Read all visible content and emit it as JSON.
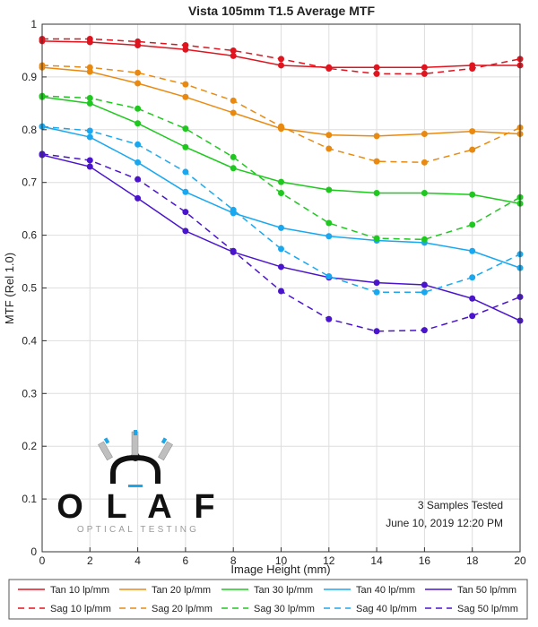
{
  "chart_data": {
    "type": "line",
    "title": "Vista 105mm T1.5 Average MTF",
    "xlabel": "Image Height (mm)",
    "ylabel": "MTF (Rel 1.0)",
    "xlim": [
      0,
      20
    ],
    "ylim": [
      0,
      1
    ],
    "xticks": [
      "0",
      "2",
      "4",
      "6",
      "8",
      "10",
      "12",
      "14",
      "16",
      "18",
      "20"
    ],
    "yticks": [
      "0",
      "0.1",
      "0.2",
      "0.3",
      "0.4",
      "0.5",
      "0.6",
      "0.7",
      "0.8",
      "0.9",
      "1"
    ],
    "grid": true,
    "legend_position": "bottom",
    "x": [
      0,
      2,
      4,
      6,
      8,
      10,
      12,
      14,
      16,
      18,
      20
    ],
    "series": [
      {
        "name": "Tan 10 lp/mm",
        "color": "#e0141e",
        "dash": false,
        "values": [
          0.968,
          0.966,
          0.96,
          0.952,
          0.94,
          0.922,
          0.918,
          0.918,
          0.918,
          0.922,
          0.922
        ]
      },
      {
        "name": "Tan 20 lp/mm",
        "color": "#e88a12",
        "dash": false,
        "values": [
          0.918,
          0.91,
          0.888,
          0.862,
          0.832,
          0.802,
          0.79,
          0.788,
          0.792,
          0.797,
          0.792
        ]
      },
      {
        "name": "Tan 30 lp/mm",
        "color": "#1ec81e",
        "dash": false,
        "values": [
          0.862,
          0.85,
          0.812,
          0.767,
          0.727,
          0.701,
          0.686,
          0.68,
          0.68,
          0.677,
          0.66
        ]
      },
      {
        "name": "Tan 40 lp/mm",
        "color": "#19a8f0",
        "dash": false,
        "values": [
          0.806,
          0.786,
          0.738,
          0.682,
          0.642,
          0.614,
          0.598,
          0.59,
          0.586,
          0.57,
          0.538
        ]
      },
      {
        "name": "Tan 50 lp/mm",
        "color": "#4a14cc",
        "dash": false,
        "values": [
          0.752,
          0.73,
          0.67,
          0.608,
          0.568,
          0.54,
          0.52,
          0.51,
          0.506,
          0.48,
          0.438
        ]
      },
      {
        "name": "Sag 10 lp/mm",
        "color": "#e0141e",
        "dash": true,
        "values": [
          0.972,
          0.972,
          0.967,
          0.96,
          0.95,
          0.934,
          0.916,
          0.906,
          0.906,
          0.916,
          0.934
        ]
      },
      {
        "name": "Sag 20 lp/mm",
        "color": "#e88a12",
        "dash": true,
        "values": [
          0.922,
          0.918,
          0.908,
          0.886,
          0.855,
          0.806,
          0.764,
          0.74,
          0.738,
          0.762,
          0.804
        ]
      },
      {
        "name": "Sag 30 lp/mm",
        "color": "#1ec81e",
        "dash": true,
        "values": [
          0.864,
          0.86,
          0.84,
          0.802,
          0.748,
          0.68,
          0.623,
          0.594,
          0.592,
          0.62,
          0.672
        ]
      },
      {
        "name": "Sag 40 lp/mm",
        "color": "#19a8f0",
        "dash": true,
        "values": [
          0.806,
          0.798,
          0.772,
          0.72,
          0.648,
          0.574,
          0.522,
          0.492,
          0.492,
          0.52,
          0.564
        ]
      },
      {
        "name": "Sag 50 lp/mm",
        "color": "#4a14cc",
        "dash": true,
        "values": [
          0.754,
          0.742,
          0.706,
          0.644,
          0.57,
          0.494,
          0.441,
          0.418,
          0.42,
          0.447,
          0.483
        ]
      }
    ],
    "annotations": [
      "3 Samples Tested",
      "June 10, 2019 12:20 PM"
    ]
  },
  "logo": {
    "letters": [
      "O",
      "L",
      "A",
      "F"
    ],
    "tagline": "OPTICAL TESTING"
  }
}
